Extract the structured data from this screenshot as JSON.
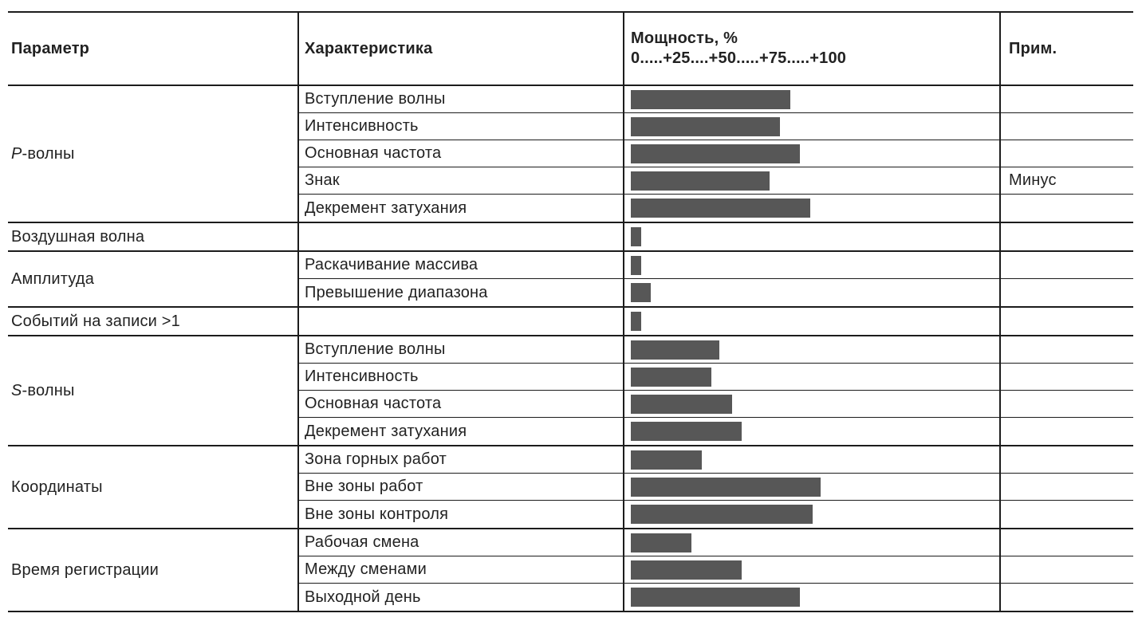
{
  "table": {
    "columns": {
      "parameter": "Параметр",
      "characteristic": "Характеристика",
      "power_title": "Мощность, %",
      "power_scale": "0.....+25....+50.....+75.....+100",
      "note": "Прим."
    },
    "groups": [
      {
        "parameter": "P-волны",
        "italic_first": true,
        "rows": [
          {
            "characteristic": "Вступление волны",
            "power_pct": 63,
            "note": ""
          },
          {
            "characteristic": "Интенсивность",
            "power_pct": 59,
            "note": ""
          },
          {
            "characteristic": "Основная частота",
            "power_pct": 67,
            "note": ""
          },
          {
            "characteristic": "Знак",
            "power_pct": 55,
            "note": "Минус"
          },
          {
            "characteristic": "Декремент затухания",
            "power_pct": 71,
            "note": ""
          }
        ]
      },
      {
        "parameter": "Воздушная волна",
        "italic_first": false,
        "rows": [
          {
            "characteristic": "",
            "power_pct": 4,
            "note": ""
          }
        ]
      },
      {
        "parameter": "Амплитуда",
        "italic_first": false,
        "rows": [
          {
            "characteristic": "Раскачивание массива",
            "power_pct": 4,
            "note": ""
          },
          {
            "characteristic": "Превышение диапазона",
            "power_pct": 8,
            "note": ""
          }
        ]
      },
      {
        "parameter": "Событий на записи >1",
        "italic_first": false,
        "rows": [
          {
            "characteristic": "",
            "power_pct": 4,
            "note": ""
          }
        ]
      },
      {
        "parameter": "S-волны",
        "italic_first": true,
        "rows": [
          {
            "characteristic": "Вступление волны",
            "power_pct": 35,
            "note": ""
          },
          {
            "characteristic": "Интенсивность",
            "power_pct": 32,
            "note": ""
          },
          {
            "characteristic": "Основная частота",
            "power_pct": 40,
            "note": ""
          },
          {
            "characteristic": "Декремент затухания",
            "power_pct": 44,
            "note": ""
          }
        ]
      },
      {
        "parameter": "Координаты",
        "italic_first": false,
        "rows": [
          {
            "characteristic": "Зона горных работ",
            "power_pct": 28,
            "note": ""
          },
          {
            "characteristic": "Вне зоны работ",
            "power_pct": 75,
            "note": ""
          },
          {
            "characteristic": "Вне зоны контроля",
            "power_pct": 72,
            "note": ""
          }
        ]
      },
      {
        "parameter": "Время регистрации",
        "italic_first": false,
        "rows": [
          {
            "characteristic": "Рабочая смена",
            "power_pct": 24,
            "note": ""
          },
          {
            "characteristic": "Между сменами",
            "power_pct": 44,
            "note": ""
          },
          {
            "characteristic": "Выходной день",
            "power_pct": 67,
            "note": ""
          }
        ]
      }
    ]
  },
  "colors": {
    "bar": "#575757",
    "border": "#1c1c1c",
    "text": "#222222",
    "background": "#ffffff"
  },
  "chart_data": {
    "type": "bar",
    "orientation": "horizontal",
    "title": "Мощность, %",
    "xlabel": "Мощность, %",
    "xlim": [
      0,
      100
    ],
    "x_ticks": [
      0,
      25,
      50,
      75,
      100
    ],
    "grid": false,
    "legend": false,
    "categories": [
      "P-волны / Вступление волны",
      "P-волны / Интенсивность",
      "P-волны / Основная частота",
      "P-волны / Знак",
      "P-волны / Декремент затухания",
      "Воздушная волна",
      "Амплитуда / Раскачивание массива",
      "Амплитуда / Превышение диапазона",
      "Событий на записи >1",
      "S-волны / Вступление волны",
      "S-волны / Интенсивность",
      "S-волны / Основная частота",
      "S-волны / Декремент затухания",
      "Координаты / Зона горных работ",
      "Координаты / Вне зоны работ",
      "Координаты / Вне зоны контроля",
      "Время регистрации / Рабочая смена",
      "Время регистрации / Между сменами",
      "Время регистрации / Выходной день"
    ],
    "values": [
      63,
      59,
      67,
      55,
      71,
      4,
      4,
      8,
      4,
      35,
      32,
      40,
      44,
      28,
      75,
      72,
      24,
      44,
      67
    ],
    "annotations": [
      {
        "category": "P-волны / Знак",
        "note": "Минус"
      }
    ]
  }
}
